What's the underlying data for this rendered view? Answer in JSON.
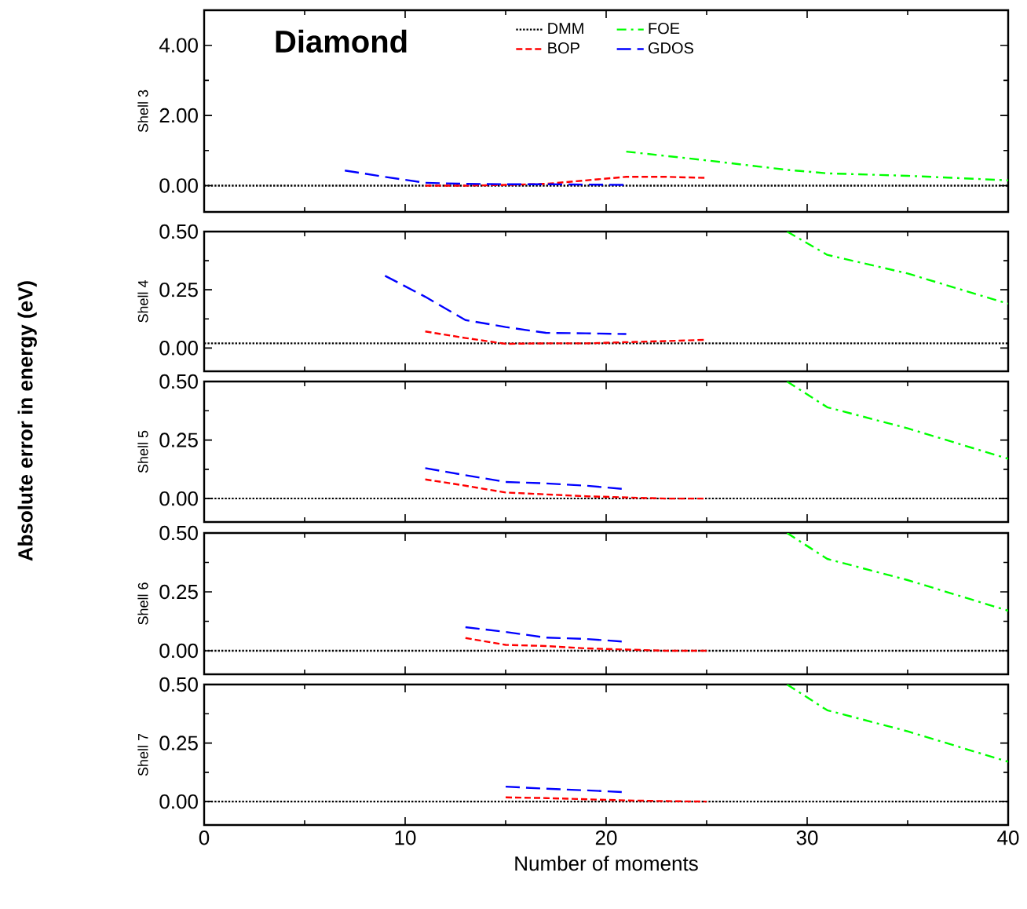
{
  "chart_data": [
    {
      "type": "line",
      "title": "Diamond",
      "ylabel": "Shell 3",
      "xlim": [
        0,
        40
      ],
      "xticks": [
        0,
        10,
        20,
        30,
        40
      ],
      "ylim": [
        -0.75,
        5
      ],
      "yticks": [
        {
          "value": 0,
          "label": "0.00"
        },
        {
          "value": 2,
          "label": "2.00"
        },
        {
          "value": 4,
          "label": "4.00"
        }
      ],
      "tick_labels": "y",
      "legend": "top",
      "marker": "none",
      "series": [
        {
          "name": "DMM",
          "color": "#000000",
          "line_style": "dotted",
          "x": [
            0,
            40
          ],
          "values": [
            0,
            0
          ]
        },
        {
          "name": "FOE",
          "color": "#00ff00",
          "line_style": "dash-dot",
          "x": [
            21,
            25,
            29,
            31,
            35,
            40
          ],
          "values": [
            0.97,
            0.72,
            0.45,
            0.35,
            0.28,
            0.15
          ]
        },
        {
          "name": "BOP",
          "color": "#ff0000",
          "line_style": "dashed",
          "x": [
            11,
            13,
            15,
            17,
            19,
            21,
            23,
            25
          ],
          "values": [
            0.0,
            0.0,
            0.02,
            0.05,
            0.15,
            0.25,
            0.25,
            0.22
          ]
        },
        {
          "name": "GDOS",
          "color": "#0000ff",
          "line_style": "long dashed",
          "x": [
            7,
            9,
            11,
            13,
            15,
            17,
            19,
            21
          ],
          "values": [
            0.43,
            0.25,
            0.08,
            0.05,
            0.04,
            0.04,
            0.03,
            0.02
          ]
        }
      ]
    },
    {
      "type": "line",
      "ylabel": "Shell 4",
      "xlim": [
        0,
        40
      ],
      "xticks": [
        0,
        10,
        20,
        30,
        40
      ],
      "ylim": [
        -0.1,
        0.5
      ],
      "yticks": [
        {
          "value": 0,
          "label": "0.00"
        },
        {
          "value": 0.25,
          "label": "0.25"
        },
        {
          "value": 0.5,
          "label": "0.50"
        }
      ],
      "tick_labels": "y",
      "marker": "none",
      "series": [
        {
          "color": "#000000",
          "line_style": "dotted",
          "x": [
            0,
            40
          ],
          "values": [
            0.02,
            0.02
          ]
        },
        {
          "color": "#00ff00",
          "line_style": "dash-dot",
          "x": [
            29,
            31,
            35,
            40
          ],
          "values": [
            0.5,
            0.4,
            0.32,
            0.19
          ]
        },
        {
          "color": "#ff0000",
          "line_style": "dashed",
          "x": [
            11,
            13,
            15,
            17,
            19,
            21,
            23,
            25
          ],
          "values": [
            0.071,
            0.043,
            0.018,
            0.02,
            0.02,
            0.025,
            0.03,
            0.035
          ]
        },
        {
          "color": "#0000ff",
          "line_style": "long dashed",
          "x": [
            9,
            11,
            13,
            15,
            17,
            19,
            21
          ],
          "values": [
            0.31,
            0.22,
            0.12,
            0.09,
            0.065,
            0.063,
            0.06
          ]
        }
      ]
    },
    {
      "type": "line",
      "ylabel": "Shell 5",
      "annotations": [
        "Absolute error in energy (eV)"
      ],
      "xlim": [
        0,
        40
      ],
      "xticks": [
        0,
        10,
        20,
        30,
        40
      ],
      "ylim": [
        -0.1,
        0.5
      ],
      "yticks": [
        {
          "value": 0,
          "label": "0.00"
        },
        {
          "value": 0.25,
          "label": "0.25"
        },
        {
          "value": 0.5,
          "label": "0.50"
        }
      ],
      "tick_labels": "y",
      "marker": "none",
      "series": [
        {
          "color": "#000000",
          "line_style": "dotted",
          "x": [
            0,
            40
          ],
          "values": [
            0,
            0
          ]
        },
        {
          "color": "#00ff00",
          "line_style": "dash-dot",
          "x": [
            29,
            31,
            35,
            40
          ],
          "values": [
            0.5,
            0.39,
            0.3,
            0.17
          ]
        },
        {
          "color": "#ff0000",
          "line_style": "dashed",
          "x": [
            11,
            13,
            15,
            17,
            19,
            21,
            23,
            25
          ],
          "values": [
            0.082,
            0.055,
            0.026,
            0.018,
            0.01,
            0.005,
            0,
            0
          ]
        },
        {
          "color": "#0000ff",
          "line_style": "long dashed",
          "x": [
            11,
            13,
            15,
            17,
            19,
            21
          ],
          "values": [
            0.13,
            0.1,
            0.071,
            0.065,
            0.055,
            0.04
          ]
        }
      ]
    },
    {
      "type": "line",
      "ylabel": "Shell 6",
      "xlim": [
        0,
        40
      ],
      "xticks": [
        0,
        10,
        20,
        30,
        40
      ],
      "ylim": [
        -0.1,
        0.5
      ],
      "yticks": [
        {
          "value": 0,
          "label": "0.00"
        },
        {
          "value": 0.25,
          "label": "0.25"
        },
        {
          "value": 0.5,
          "label": "0.50"
        }
      ],
      "tick_labels": "y",
      "marker": "none",
      "series": [
        {
          "color": "#000000",
          "line_style": "dotted",
          "x": [
            0,
            40
          ],
          "values": [
            0,
            0
          ]
        },
        {
          "color": "#00ff00",
          "line_style": "dash-dot",
          "x": [
            29,
            31,
            35,
            40
          ],
          "values": [
            0.5,
            0.39,
            0.3,
            0.17
          ]
        },
        {
          "color": "#ff0000",
          "line_style": "dashed",
          "x": [
            13,
            15,
            17,
            19,
            21,
            23,
            25
          ],
          "values": [
            0.054,
            0.025,
            0.02,
            0.01,
            0.005,
            0,
            0
          ]
        },
        {
          "color": "#0000ff",
          "line_style": "long dashed",
          "x": [
            13,
            15,
            17,
            19,
            21
          ],
          "values": [
            0.1,
            0.08,
            0.056,
            0.05,
            0.038
          ]
        }
      ]
    },
    {
      "type": "line",
      "xlabel": "Number of moments",
      "ylabel": "Shell 7",
      "xlim": [
        0,
        40
      ],
      "xticks": [
        0,
        10,
        20,
        30,
        40
      ],
      "ylim": [
        -0.1,
        0.5
      ],
      "yticks": [
        {
          "value": 0,
          "label": "0.00"
        },
        {
          "value": 0.25,
          "label": "0.25"
        },
        {
          "value": 0.5,
          "label": "0.50"
        }
      ],
      "marker": "none",
      "series": [
        {
          "color": "#000000",
          "line_style": "dotted",
          "x": [
            0,
            40
          ],
          "values": [
            0,
            0
          ]
        },
        {
          "color": "#00ff00",
          "line_style": "dash-dot",
          "x": [
            29,
            31,
            35,
            40
          ],
          "values": [
            0.5,
            0.39,
            0.3,
            0.17
          ]
        },
        {
          "color": "#ff0000",
          "line_style": "dashed",
          "x": [
            15,
            17,
            19,
            21,
            23,
            25
          ],
          "values": [
            0.018,
            0.015,
            0.01,
            0.005,
            0.002,
            0
          ]
        },
        {
          "color": "#0000ff",
          "line_style": "long dashed",
          "x": [
            15,
            17,
            19,
            21
          ],
          "values": [
            0.064,
            0.055,
            0.048,
            0.04
          ]
        }
      ]
    }
  ]
}
